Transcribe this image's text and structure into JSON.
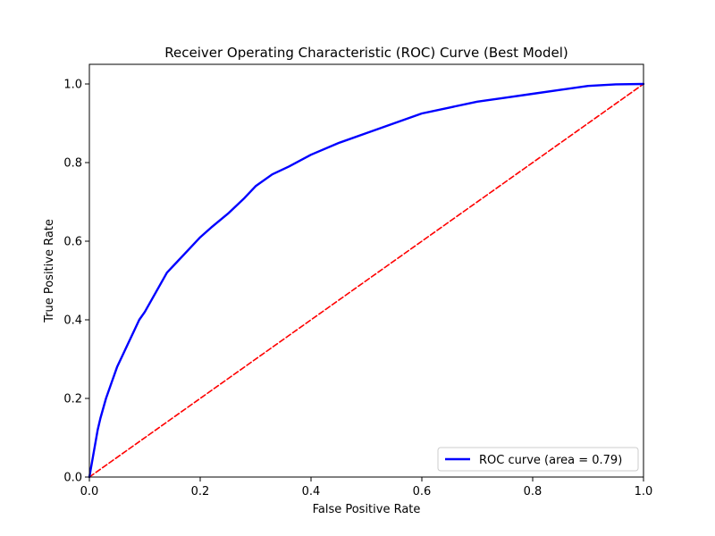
{
  "chart_data": {
    "type": "line",
    "title": "Receiver Operating Characteristic (ROC) Curve (Best Model)",
    "xlabel": "False Positive Rate",
    "ylabel": "True Positive Rate",
    "xlim": [
      0.0,
      1.0
    ],
    "ylim": [
      0.0,
      1.05
    ],
    "grid": false,
    "legend_position": "lower-right",
    "x_ticks": [
      "0.0",
      "0.2",
      "0.4",
      "0.6",
      "0.8",
      "1.0"
    ],
    "y_ticks": [
      "0.0",
      "0.2",
      "0.4",
      "0.6",
      "0.8",
      "1.0"
    ],
    "series": [
      {
        "name": "ROC curve (area = 0.79)",
        "color": "#0000ff",
        "style": "solid",
        "x": [
          0.0,
          0.005,
          0.01,
          0.015,
          0.02,
          0.03,
          0.04,
          0.05,
          0.06,
          0.07,
          0.08,
          0.09,
          0.1,
          0.12,
          0.14,
          0.16,
          0.18,
          0.2,
          0.22,
          0.25,
          0.28,
          0.3,
          0.33,
          0.36,
          0.4,
          0.45,
          0.5,
          0.55,
          0.6,
          0.65,
          0.7,
          0.75,
          0.8,
          0.85,
          0.9,
          0.95,
          1.0
        ],
        "y": [
          0.0,
          0.04,
          0.08,
          0.12,
          0.15,
          0.2,
          0.24,
          0.28,
          0.31,
          0.34,
          0.37,
          0.4,
          0.42,
          0.47,
          0.52,
          0.55,
          0.58,
          0.61,
          0.635,
          0.67,
          0.71,
          0.74,
          0.77,
          0.79,
          0.82,
          0.85,
          0.875,
          0.9,
          0.925,
          0.94,
          0.955,
          0.965,
          0.975,
          0.985,
          0.995,
          0.999,
          1.0
        ]
      },
      {
        "color": "#ff0000",
        "style": "dashed",
        "x": [
          0.0,
          1.0
        ],
        "y": [
          0.0,
          1.0
        ]
      }
    ]
  }
}
